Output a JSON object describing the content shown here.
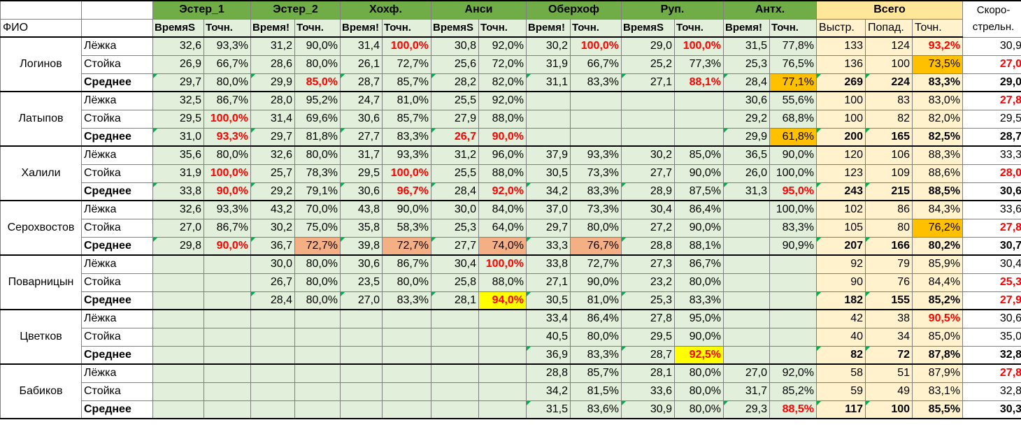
{
  "header": {
    "fio": "ФИО",
    "groups": [
      "Эстер_1",
      "Эстер_2",
      "Хохф.",
      "Анси",
      "Оберхоф",
      "Руп.",
      "Антх."
    ],
    "total": "Всего",
    "speed_line1": "Скоро-",
    "speed_line2": "стрельн.",
    "time": "ВремяS",
    "time_cut": "Время!",
    "acc": "Точн.",
    "shots": "Выстр.",
    "hits": "Попад."
  },
  "athletes": [
    {
      "name": "Логинов",
      "rows": [
        {
          "pos": "Лёжка",
          "cells": [
            "32,6",
            "93,3%",
            "31,2",
            "90,0%",
            "31,4",
            "100,0%",
            "30,8",
            "92,0%",
            "30,2",
            "100,0%",
            "29,0",
            "100,0%",
            "31,5",
            "77,8%"
          ],
          "shots": "133",
          "hits": "124",
          "acc": "93,2%",
          "speed": "30,9"
        },
        {
          "pos": "Стойка",
          "cells": [
            "26,9",
            "66,7%",
            "28,6",
            "80,0%",
            "26,1",
            "72,7%",
            "25,6",
            "72,0%",
            "31,9",
            "66,7%",
            "25,2",
            "77,3%",
            "25,3",
            "76,5%"
          ],
          "shots": "136",
          "hits": "100",
          "acc": "73,5%",
          "speed": "27,0"
        },
        {
          "pos": "Среднее",
          "cells": [
            "29,7",
            "80,0%",
            "29,9",
            "85,0%",
            "28,7",
            "85,7%",
            "28,2",
            "82,0%",
            "31,1",
            "83,3%",
            "27,1",
            "88,1%",
            "28,4",
            "77,1%"
          ],
          "shots": "269",
          "hits": "224",
          "acc": "83,3%",
          "speed": "29,0"
        }
      ]
    },
    {
      "name": "Латыпов",
      "rows": [
        {
          "pos": "Лёжка",
          "cells": [
            "32,5",
            "86,7%",
            "28,0",
            "95,2%",
            "24,7",
            "81,0%",
            "25,5",
            "92,0%",
            "",
            "",
            "",
            "",
            "30,6",
            "55,6%"
          ],
          "shots": "100",
          "hits": "83",
          "acc": "83,0%",
          "speed": "27,8"
        },
        {
          "pos": "Стойка",
          "cells": [
            "29,5",
            "100,0%",
            "31,4",
            "69,6%",
            "30,6",
            "85,7%",
            "27,9",
            "88,0%",
            "",
            "",
            "",
            "",
            "29,2",
            "68,8%"
          ],
          "shots": "100",
          "hits": "82",
          "acc": "82,0%",
          "speed": "29,5"
        },
        {
          "pos": "Среднее",
          "cells": [
            "31,0",
            "93,3%",
            "29,7",
            "81,8%",
            "27,7",
            "83,3%",
            "26,7",
            "90,0%",
            "",
            "",
            "",
            "",
            "29,9",
            "61,8%"
          ],
          "shots": "200",
          "hits": "165",
          "acc": "82,5%",
          "speed": "28,7"
        }
      ]
    },
    {
      "name": "Халили",
      "rows": [
        {
          "pos": "Лёжка",
          "cells": [
            "35,6",
            "80,0%",
            "32,6",
            "80,0%",
            "31,7",
            "93,3%",
            "31,2",
            "96,0%",
            "37,9",
            "93,3%",
            "30,2",
            "85,0%",
            "36,5",
            "90,0%"
          ],
          "shots": "120",
          "hits": "106",
          "acc": "88,3%",
          "speed": "33,3"
        },
        {
          "pos": "Стойка",
          "cells": [
            "31,9",
            "100,0%",
            "25,7",
            "78,3%",
            "29,5",
            "100,0%",
            "25,5",
            "88,0%",
            "30,5",
            "73,3%",
            "27,7",
            "90,0%",
            "26,0",
            "100,0%"
          ],
          "shots": "123",
          "hits": "109",
          "acc": "88,6%",
          "speed": "28,0"
        },
        {
          "pos": "Среднее",
          "cells": [
            "33,8",
            "90,0%",
            "29,2",
            "79,1%",
            "30,6",
            "96,7%",
            "28,4",
            "92,0%",
            "34,2",
            "83,3%",
            "28,9",
            "87,5%",
            "31,3",
            "95,0%"
          ],
          "shots": "243",
          "hits": "215",
          "acc": "88,5%",
          "speed": "30,6"
        }
      ]
    },
    {
      "name": "Серохвостов",
      "rows": [
        {
          "pos": "Лёжка",
          "cells": [
            "32,6",
            "93,3%",
            "43,2",
            "70,0%",
            "43,8",
            "90,0%",
            "30,0",
            "84,0%",
            "37,0",
            "73,3%",
            "30,4",
            "86,4%",
            "",
            "100,0%"
          ],
          "shots": "102",
          "hits": "86",
          "acc": "84,3%",
          "speed": "33,6"
        },
        {
          "pos": "Стойка",
          "cells": [
            "27,0",
            "86,7%",
            "30,2",
            "75,0%",
            "35,8",
            "58,3%",
            "25,3",
            "64,0%",
            "29,7",
            "80,0%",
            "27,2",
            "90,0%",
            "",
            "83,3%"
          ],
          "shots": "105",
          "hits": "80",
          "acc": "76,2%",
          "speed": "27,8"
        },
        {
          "pos": "Среднее",
          "cells": [
            "29,8",
            "90,0%",
            "36,7",
            "72,7%",
            "39,8",
            "72,7%",
            "27,7",
            "74,0%",
            "33,3",
            "76,7%",
            "28,8",
            "88,1%",
            "",
            "90,9%"
          ],
          "shots": "207",
          "hits": "166",
          "acc": "80,2%",
          "speed": "30,7"
        }
      ]
    },
    {
      "name": "Поварницын",
      "rows": [
        {
          "pos": "Лёжка",
          "cells": [
            "",
            "",
            "30,0",
            "80,0%",
            "30,6",
            "86,7%",
            "30,4",
            "100,0%",
            "33,8",
            "72,7%",
            "27,3",
            "86,7%",
            "",
            ""
          ],
          "shots": "92",
          "hits": "79",
          "acc": "85,9%",
          "speed": "30,4"
        },
        {
          "pos": "Стойка",
          "cells": [
            "",
            "",
            "26,7",
            "80,0%",
            "23,5",
            "80,0%",
            "25,8",
            "88,0%",
            "27,1",
            "90,0%",
            "23,2",
            "80,0%",
            "",
            ""
          ],
          "shots": "90",
          "hits": "76",
          "acc": "84,4%",
          "speed": "25,3"
        },
        {
          "pos": "Среднее",
          "cells": [
            "",
            "",
            "28,4",
            "80,0%",
            "27,0",
            "83,3%",
            "28,1",
            "94,0%",
            "30,5",
            "81,0%",
            "25,3",
            "83,3%",
            "",
            ""
          ],
          "shots": "182",
          "hits": "155",
          "acc": "85,2%",
          "speed": "27,9"
        }
      ]
    },
    {
      "name": "Цветков",
      "rows": [
        {
          "pos": "Лёжка",
          "cells": [
            "",
            "",
            "",
            "",
            "",
            "",
            "",
            "",
            "33,4",
            "86,4%",
            "27,8",
            "95,0%",
            "",
            ""
          ],
          "shots": "42",
          "hits": "38",
          "acc": "90,5%",
          "speed": "30,6"
        },
        {
          "pos": "Стойка",
          "cells": [
            "",
            "",
            "",
            "",
            "",
            "",
            "",
            "",
            "40,5",
            "80,0%",
            "29,5",
            "90,0%",
            "",
            ""
          ],
          "shots": "40",
          "hits": "34",
          "acc": "85,0%",
          "speed": "35,0"
        },
        {
          "pos": "Среднее",
          "cells": [
            "",
            "",
            "",
            "",
            "",
            "",
            "",
            "",
            "36,9",
            "83,3%",
            "28,7",
            "92,5%",
            "",
            ""
          ],
          "shots": "82",
          "hits": "72",
          "acc": "87,8%",
          "speed": "32,8"
        }
      ]
    },
    {
      "name": "Бабиков",
      "rows": [
        {
          "pos": "Лёжка",
          "cells": [
            "",
            "",
            "",
            "",
            "",
            "",
            "",
            "",
            "28,8",
            "85,7%",
            "28,1",
            "80,0%",
            "27,0",
            "92,0%"
          ],
          "shots": "58",
          "hits": "51",
          "acc": "87,9%",
          "speed": "27,8"
        },
        {
          "pos": "Стойка",
          "cells": [
            "",
            "",
            "",
            "",
            "",
            "",
            "",
            "",
            "34,2",
            "81,5%",
            "33,6",
            "80,0%",
            "31,7",
            "85,2%"
          ],
          "shots": "59",
          "hits": "49",
          "acc": "83,1%",
          "speed": "32,8"
        },
        {
          "pos": "Среднее",
          "cells": [
            "",
            "",
            "",
            "",
            "",
            "",
            "",
            "",
            "31,5",
            "83,6%",
            "30,9",
            "80,0%",
            "29,3",
            "88,5%"
          ],
          "shots": "117",
          "hits": "100",
          "acc": "85,5%",
          "speed": "30,3"
        }
      ]
    }
  ],
  "styles": {
    "red_cells": [
      "0-0-5",
      "0-0-9",
      "0-0-11",
      "0-2-3",
      "0-2-11",
      "1-1-1",
      "1-2-1",
      "1-2-6",
      "1-2-7",
      "2-1-1",
      "2-1-5",
      "2-2-1",
      "2-2-5",
      "2-2-7",
      "2-2-13",
      "3-2-1",
      "4-0-7",
      "4-2-7",
      "5-2-11",
      "6-2-13"
    ],
    "red_total_acc": [
      "0-0",
      "5-0"
    ],
    "red_speed": [
      "0-1",
      "1-0",
      "2-1",
      "3-1",
      "4-1",
      "4-2",
      "6-0"
    ],
    "fill_orange": [
      "0-2-13",
      "1-2-13"
    ],
    "fill_orange_total": [
      "0-1",
      "3-1"
    ],
    "fill_salmon": [
      "3-2-3",
      "3-2-5",
      "3-2-7",
      "3-2-9"
    ],
    "fill_yellow": [
      "4-2-7",
      "5-2-11"
    ],
    "colors": {
      "header_green": "#70ad47",
      "cell_green": "#e2efda",
      "total_header": "#ffe699",
      "total_cell": "#fff2cc",
      "orange": "#ffc000",
      "salmon": "#f4b084",
      "yellow": "#ffff00",
      "red_text": "#ff0000"
    }
  }
}
